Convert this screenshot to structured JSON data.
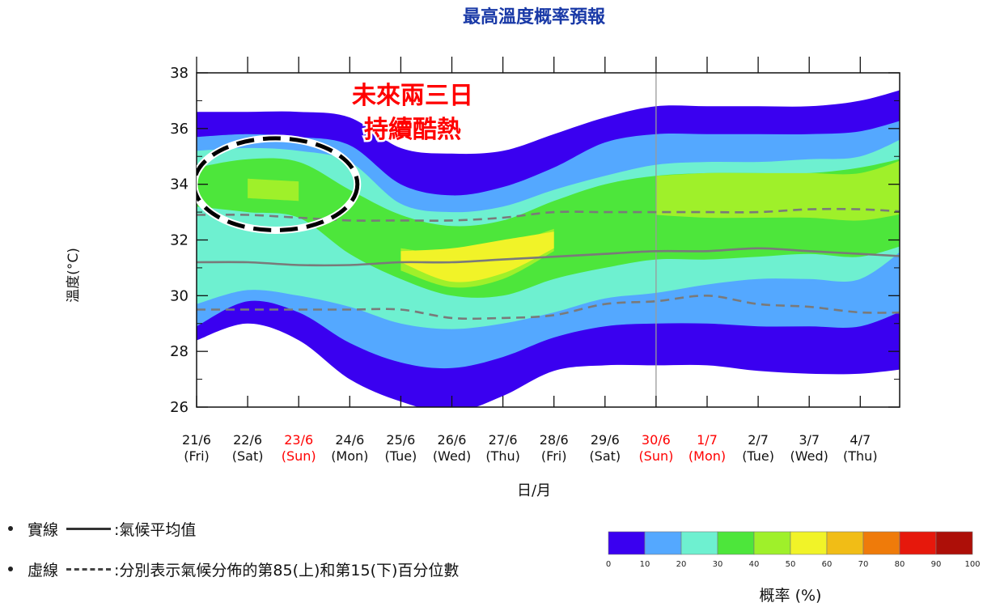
{
  "chart_data": {
    "type": "area",
    "title": "最高溫度概率預報",
    "xlabel": "日/月",
    "ylabel": "溫度(°C)",
    "ylim": [
      26,
      38
    ],
    "yticks": [
      26,
      28,
      30,
      32,
      34,
      36,
      38
    ],
    "categories": [
      {
        "date": "21/6",
        "day": "(Fri)",
        "holiday": false
      },
      {
        "date": "22/6",
        "day": "(Sat)",
        "holiday": false
      },
      {
        "date": "23/6",
        "day": "(Sun)",
        "holiday": true
      },
      {
        "date": "24/6",
        "day": "(Mon)",
        "holiday": false
      },
      {
        "date": "25/6",
        "day": "(Tue)",
        "holiday": false
      },
      {
        "date": "26/6",
        "day": "(Wed)",
        "holiday": false
      },
      {
        "date": "27/6",
        "day": "(Thu)",
        "holiday": false
      },
      {
        "date": "28/6",
        "day": "(Fri)",
        "holiday": false
      },
      {
        "date": "29/6",
        "day": "(Sat)",
        "holiday": false
      },
      {
        "date": "30/6",
        "day": "(Sun)",
        "holiday": true
      },
      {
        "date": "1/7",
        "day": "(Mon)",
        "holiday": true
      },
      {
        "date": "2/7",
        "day": "(Tue)",
        "holiday": false
      },
      {
        "date": "3/7",
        "day": "(Wed)",
        "holiday": false
      },
      {
        "date": "4/7",
        "day": "(Thu)",
        "holiday": false
      }
    ],
    "probability_bands": [
      {
        "lower": [
          28.4,
          29.0,
          28.4,
          27.0,
          26.2,
          25.8,
          26.4,
          27.3,
          27.5,
          27.5,
          27.5,
          27.3,
          27.2,
          27.2,
          27.4
        ],
        "upper": [
          36.6,
          36.6,
          36.6,
          36.4,
          35.3,
          35.1,
          35.2,
          35.8,
          36.4,
          36.8,
          36.8,
          36.8,
          36.8,
          37.0,
          37.5
        ]
      },
      {
        "lower": [
          28.9,
          29.8,
          29.4,
          28.3,
          27.6,
          27.4,
          27.8,
          28.5,
          28.9,
          29.0,
          29.0,
          28.9,
          28.9,
          28.9,
          29.6
        ],
        "upper": [
          35.7,
          35.8,
          35.7,
          35.4,
          34.0,
          33.6,
          33.9,
          34.6,
          35.5,
          35.8,
          35.8,
          35.8,
          35.8,
          35.9,
          36.4
        ]
      },
      {
        "lower": [
          29.7,
          30.2,
          30.0,
          29.6,
          29.0,
          28.8,
          29.0,
          29.4,
          29.9,
          30.1,
          30.4,
          30.6,
          30.6,
          30.6,
          31.9
        ],
        "upper": [
          35.2,
          35.3,
          35.2,
          34.8,
          33.3,
          33.0,
          33.2,
          33.8,
          34.3,
          34.7,
          34.8,
          34.8,
          34.9,
          35.0,
          35.8
        ]
      },
      {
        "lower": [
          33.2,
          33.0,
          32.8,
          31.5,
          30.6,
          30.0,
          30.0,
          30.6,
          31.0,
          31.3,
          31.3,
          31.4,
          31.5,
          31.4,
          31.9
        ],
        "upper": [
          34.6,
          34.9,
          34.8,
          33.8,
          32.9,
          32.5,
          32.7,
          33.4,
          34.0,
          34.3,
          34.4,
          34.4,
          34.4,
          34.6,
          35.0
        ],
        "xrange": [
          0.0,
          14.0
        ]
      },
      {
        "lower": [
          null,
          33.5,
          33.4,
          null,
          30.9,
          30.3,
          30.6,
          31.6,
          null,
          32.9,
          32.8,
          32.8,
          32.8,
          32.7,
          33.0
        ],
        "upper": [
          null,
          34.2,
          34.1,
          null,
          31.7,
          31.5,
          31.8,
          32.4,
          null,
          34.3,
          34.4,
          34.4,
          34.4,
          34.4,
          35.0
        ]
      },
      {
        "lower": [
          null,
          null,
          null,
          null,
          31.2,
          30.5,
          30.8,
          31.7,
          null,
          null,
          null,
          null,
          null,
          null,
          null
        ],
        "upper": [
          null,
          null,
          null,
          null,
          31.6,
          31.7,
          32.0,
          32.3,
          null,
          null,
          null,
          null,
          null,
          null,
          null
        ]
      }
    ],
    "series": [
      {
        "name": "氣候平均值",
        "style": "solid",
        "color": "#7a7a7a",
        "x": [
          0,
          1,
          2,
          3,
          4,
          5,
          6,
          7,
          8,
          9,
          10,
          11,
          12,
          13,
          14
        ],
        "values": [
          31.2,
          31.2,
          31.1,
          31.1,
          31.2,
          31.2,
          31.3,
          31.4,
          31.5,
          31.6,
          31.6,
          31.7,
          31.6,
          31.5,
          31.4
        ]
      },
      {
        "name": "第85百分位數",
        "style": "dashed",
        "color": "#7a7a7a",
        "x": [
          0,
          1,
          2,
          3,
          4,
          5,
          6,
          7,
          8,
          9,
          10,
          11,
          12,
          13,
          14
        ],
        "values": [
          32.9,
          32.9,
          32.8,
          32.7,
          32.7,
          32.7,
          32.8,
          33.0,
          33.0,
          33.0,
          33.0,
          33.0,
          33.1,
          33.1,
          33.0
        ]
      },
      {
        "name": "第15百分位數",
        "style": "dashed",
        "color": "#7a7a7a",
        "x": [
          0,
          1,
          2,
          3,
          4,
          5,
          6,
          7,
          8,
          9,
          10,
          11,
          12,
          13,
          14
        ],
        "values": [
          29.5,
          29.5,
          29.5,
          29.5,
          29.5,
          29.2,
          29.2,
          29.3,
          29.7,
          29.8,
          30.0,
          29.7,
          29.6,
          29.4,
          29.4
        ]
      }
    ],
    "divider_x": 9.0,
    "annotation": {
      "line1": "未來兩三日",
      "line2": "持續酷熱",
      "color": "#ff0000"
    },
    "highlight_ellipse": {
      "cx": 1.55,
      "cy": 34.0,
      "rx": 1.6,
      "ry": 1.65
    }
  },
  "legend": {
    "solid_label": "實線",
    "solid_desc": ":氣候平均值",
    "dashed_label": "虛線",
    "dashed_desc": ":分別表示氣候分佈的第85(上)和第15(下)百分位數"
  },
  "colorbar": {
    "label": "概率 (%)",
    "ticks": [
      "0",
      "10",
      "20",
      "30",
      "40",
      "50",
      "60",
      "70",
      "80",
      "90",
      "100"
    ],
    "colors": [
      "#3a00f0",
      "#54a8ff",
      "#6ef0d0",
      "#4de63b",
      "#9ff02a",
      "#f1f328",
      "#f1bd16",
      "#ef7b0a",
      "#e6180c",
      "#ad0f08"
    ]
  },
  "colors": {
    "holiday": "#ff0000",
    "axis": "#111111"
  }
}
